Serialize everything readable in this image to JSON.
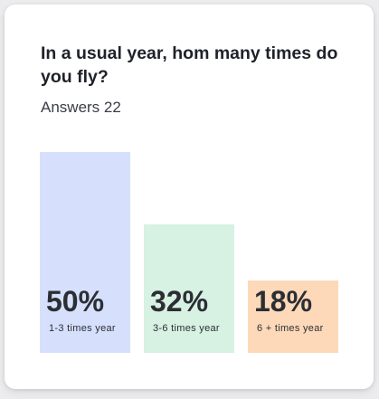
{
  "card": {
    "title": "In a usual year, hom many times do you fly?",
    "subtitle": "Answers 22"
  },
  "chart_data": {
    "type": "bar",
    "categories": [
      "1-3 times year",
      "3-6 times year",
      "6 + times year"
    ],
    "values": [
      50,
      32,
      18
    ],
    "value_labels": [
      "50%",
      "32%",
      "18%"
    ],
    "ylim": [
      0,
      50
    ],
    "colors": [
      "#d6e0fd",
      "#d7f1e3",
      "#fdd9b9"
    ]
  }
}
